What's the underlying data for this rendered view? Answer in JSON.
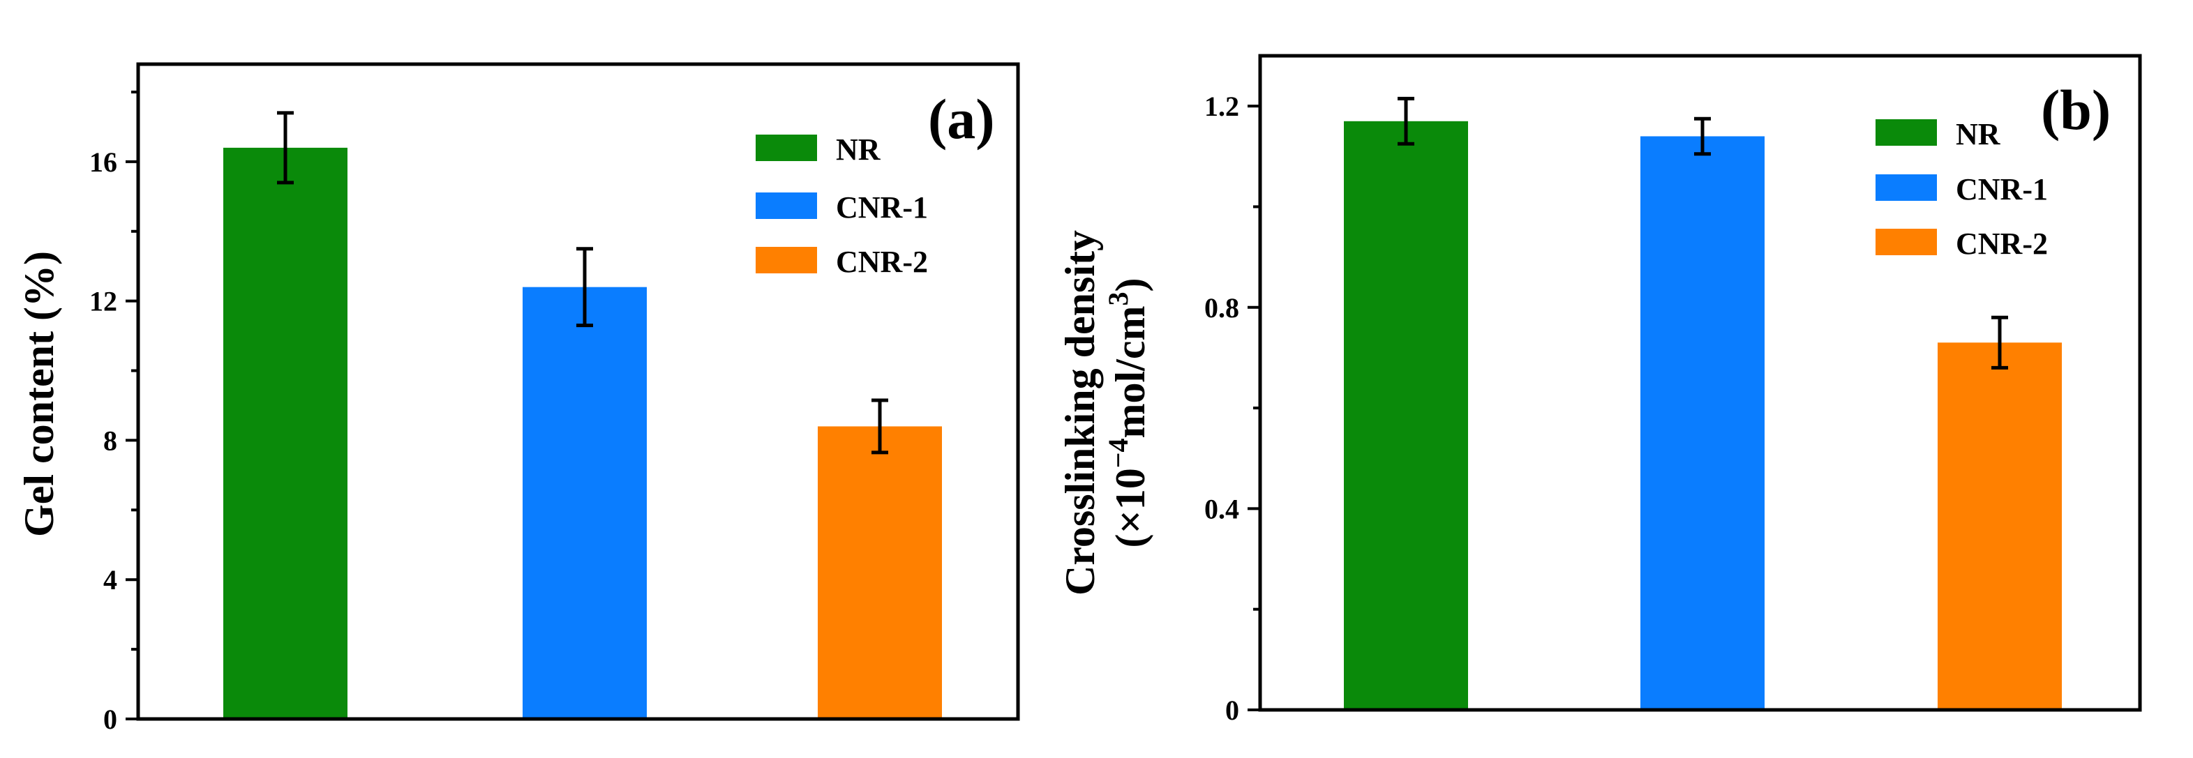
{
  "colors": {
    "NR": "#0a8a0a",
    "CNR-1": "#0a7dff",
    "CNR-2": "#ff8000"
  },
  "chart_data": [
    {
      "type": "bar",
      "panel_label": "(a)",
      "categories": [
        "NR",
        "CNR-1",
        "CNR-2"
      ],
      "values": [
        16.4,
        12.4,
        8.4
      ],
      "errors": [
        1.0,
        1.1,
        0.75
      ],
      "ylabel": "Gel content (%)",
      "ylim": [
        0,
        18.8
      ],
      "yticks": [
        0,
        4,
        8,
        12,
        16
      ],
      "ytick_labels": [
        "0",
        "4",
        "8",
        "12",
        "16"
      ],
      "legend": [
        "NR",
        "CNR-1",
        "CNR-2"
      ],
      "legend_position": "top-right"
    },
    {
      "type": "bar",
      "panel_label": "(b)",
      "categories": [
        "NR",
        "CNR-1",
        "CNR-2"
      ],
      "values": [
        1.17,
        1.14,
        0.73
      ],
      "errors": [
        0.045,
        0.035,
        0.05
      ],
      "ylabel_line1": "Crosslinking density",
      "ylabel_line2_prefix": "(×10",
      "ylabel_line2_exp": "−4",
      "ylabel_line2_mid": "mol/cm",
      "ylabel_line2_exp2": "3",
      "ylabel_line2_suffix": ")",
      "ylim": [
        0,
        1.3
      ],
      "yticks": [
        0,
        0.4,
        0.8,
        1.2
      ],
      "ytick_labels": [
        "0",
        "0.4",
        "0.8",
        "1.2"
      ],
      "legend": [
        "NR",
        "CNR-1",
        "CNR-2"
      ],
      "legend_position": "top-right"
    }
  ]
}
